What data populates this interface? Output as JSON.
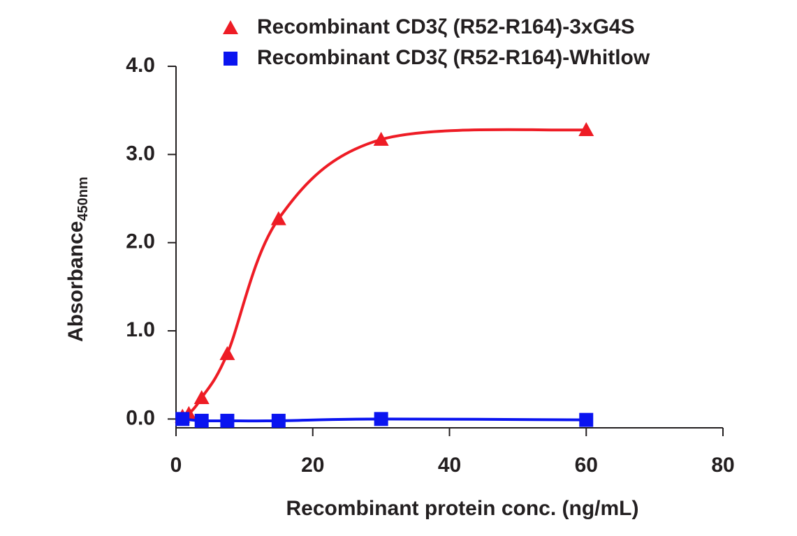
{
  "chart_data": {
    "type": "line",
    "xlabel": "Recombinant protein conc. (ng/mL)",
    "ylabel": "Absorbance",
    "ylabel_subscript": "450nm",
    "xlim": [
      0,
      80
    ],
    "xticks": [
      0,
      20,
      40,
      60,
      80
    ],
    "ylim": [
      -0.1,
      4.0
    ],
    "yticks": [
      {
        "value": 0,
        "label": "0.0"
      },
      {
        "value": 1,
        "label": "1.0"
      },
      {
        "value": 2,
        "label": "2.0"
      },
      {
        "value": 3,
        "label": "3.0"
      },
      {
        "value": 4,
        "label": "4.0"
      }
    ],
    "series": [
      {
        "name": "Recombinant CD3ζ (R52-R164)-3xG4S",
        "color": "#ee1c25",
        "marker": "triangle",
        "x": [
          0.94,
          1.875,
          3.75,
          7.5,
          15,
          30,
          60
        ],
        "values": [
          0.03,
          0.06,
          0.24,
          0.74,
          2.27,
          3.17,
          3.28
        ]
      },
      {
        "name": "Recombinant CD3ζ (R52-R164)-Whitlow",
        "color": "#0a14f0",
        "marker": "square",
        "x": [
          0.94,
          3.75,
          7.5,
          15,
          30,
          60
        ],
        "values": [
          0.0,
          -0.02,
          -0.02,
          -0.02,
          0.0,
          -0.01
        ]
      }
    ]
  }
}
